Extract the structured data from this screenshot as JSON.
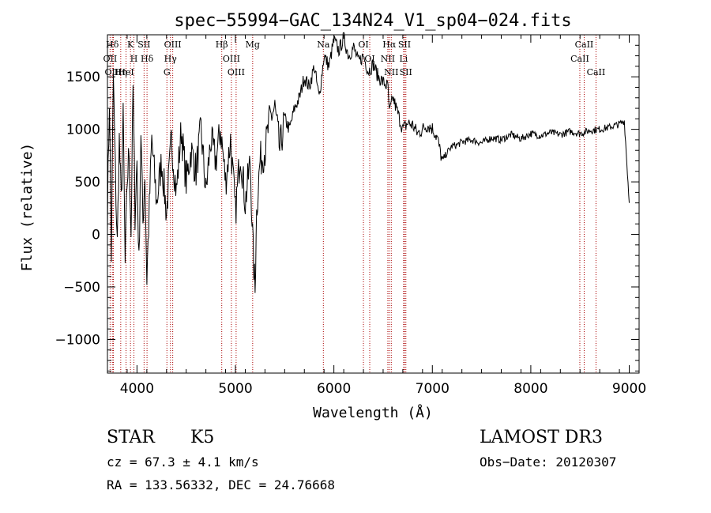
{
  "chart_data": {
    "type": "line",
    "title": "spec−55994−GAC_134N24_V1_sp04−024.fits",
    "xlabel": "Wavelength (Å)",
    "ylabel": "Flux (relative)",
    "xlim": [
      3700,
      9100
    ],
    "ylim": [
      -1320,
      1900
    ],
    "xticks": [
      4000,
      5000,
      6000,
      7000,
      8000,
      9000
    ],
    "xtick_labels": [
      "4000",
      "5000",
      "6000",
      "7000",
      "8000",
      "9000"
    ],
    "yticks": [
      -1000,
      -500,
      0,
      500,
      1000,
      1500
    ],
    "ytick_labels": [
      "−1000",
      "−500",
      "0",
      "500",
      "1000",
      "1500"
    ],
    "grid": false,
    "series": [
      {
        "name": "flux",
        "x": [
          3700,
          3720,
          3740,
          3760,
          3780,
          3800,
          3820,
          3840,
          3860,
          3880,
          3900,
          3920,
          3940,
          3960,
          3980,
          4000,
          4020,
          4040,
          4060,
          4080,
          4100,
          4150,
          4200,
          4250,
          4300,
          4350,
          4400,
          4450,
          4500,
          4550,
          4600,
          4650,
          4700,
          4750,
          4800,
          4850,
          4900,
          4950,
          5000,
          5050,
          5100,
          5150,
          5180,
          5200,
          5210,
          5220,
          5250,
          5300,
          5350,
          5400,
          5450,
          5500,
          5550,
          5600,
          5650,
          5700,
          5750,
          5800,
          5850,
          5900,
          5950,
          6000,
          6050,
          6100,
          6150,
          6200,
          6250,
          6300,
          6350,
          6400,
          6450,
          6500,
          6550,
          6563,
          6600,
          6650,
          6700,
          6750,
          6800,
          6850,
          6900,
          6950,
          7000,
          7050,
          7100,
          7150,
          7200,
          7250,
          7300,
          7400,
          7500,
          7600,
          7700,
          7800,
          7900,
          8000,
          8100,
          8200,
          8300,
          8400,
          8500,
          8600,
          8700,
          8800,
          8900,
          8950,
          9000
        ],
        "y": [
          200,
          1300,
          -200,
          1500,
          600,
          -100,
          900,
          300,
          1100,
          -300,
          500,
          800,
          0,
          1400,
          200,
          700,
          -300,
          1000,
          100,
          600,
          -420,
          900,
          300,
          700,
          200,
          900,
          400,
          1000,
          500,
          800,
          600,
          1000,
          400,
          900,
          700,
          1000,
          500,
          900,
          200,
          800,
          300,
          700,
          -180,
          -560,
          100,
          300,
          700,
          800,
          1100,
          1200,
          800,
          1100,
          1000,
          1200,
          1300,
          1500,
          1400,
          1600,
          1300,
          1700,
          1600,
          1850,
          1750,
          1870,
          1700,
          1780,
          1640,
          1700,
          1550,
          1620,
          1500,
          1450,
          1400,
          1150,
          1300,
          1150,
          1000,
          1060,
          1040,
          960,
          1000,
          1040,
          1010,
          920,
          700,
          780,
          840,
          850,
          880,
          900,
          870,
          920,
          900,
          950,
          910,
          960,
          940,
          970,
          950,
          980,
          960,
          990,
          1000,
          1020,
          1050,
          1080,
          300
        ]
      }
    ],
    "spectral_lines": [
      {
        "name": "Hδ",
        "wavelength": 3750
      },
      {
        "name": "OII",
        "wavelength": 3727
      },
      {
        "name": "OIII",
        "wavelength": 3760
      },
      {
        "name": "K",
        "wavelength": 3934
      },
      {
        "name": "H",
        "wavelength": 3969
      },
      {
        "name": "HeI",
        "wavelength": 3889
      },
      {
        "name": "Hη",
        "wavelength": 3835
      },
      {
        "name": "SII",
        "wavelength": 4072
      },
      {
        "name": "Hδ",
        "wavelength": 4102
      },
      {
        "name": "OIII",
        "wavelength": 4363
      },
      {
        "name": "Hγ",
        "wavelength": 4340
      },
      {
        "name": "G",
        "wavelength": 4304
      },
      {
        "name": "Hβ",
        "wavelength": 4861
      },
      {
        "name": "OIII",
        "wavelength": 4959
      },
      {
        "name": "OIII",
        "wavelength": 5007
      },
      {
        "name": "Mg",
        "wavelength": 5175
      },
      {
        "name": "Na",
        "wavelength": 5893
      },
      {
        "name": "OI",
        "wavelength": 6300
      },
      {
        "name": "OI",
        "wavelength": 6364
      },
      {
        "name": "Hα",
        "wavelength": 6563
      },
      {
        "name": "NII",
        "wavelength": 6548
      },
      {
        "name": "NII",
        "wavelength": 6583
      },
      {
        "name": "SII",
        "wavelength": 6717
      },
      {
        "name": "Li",
        "wavelength": 6708
      },
      {
        "name": "SII",
        "wavelength": 6731
      },
      {
        "name": "CaII",
        "wavelength": 8542
      },
      {
        "name": "CaII",
        "wavelength": 8498
      },
      {
        "name": "CaII",
        "wavelength": 8662
      }
    ]
  },
  "footer": {
    "object_class": "STAR",
    "subclass": "K5",
    "survey": "LAMOST DR3",
    "redshift": "cz = 67.3 ± 4.1 km/s",
    "obs_date": "Obs−Date: 20120307",
    "coords": "RA = 133.56332, DEC =  24.76668"
  }
}
